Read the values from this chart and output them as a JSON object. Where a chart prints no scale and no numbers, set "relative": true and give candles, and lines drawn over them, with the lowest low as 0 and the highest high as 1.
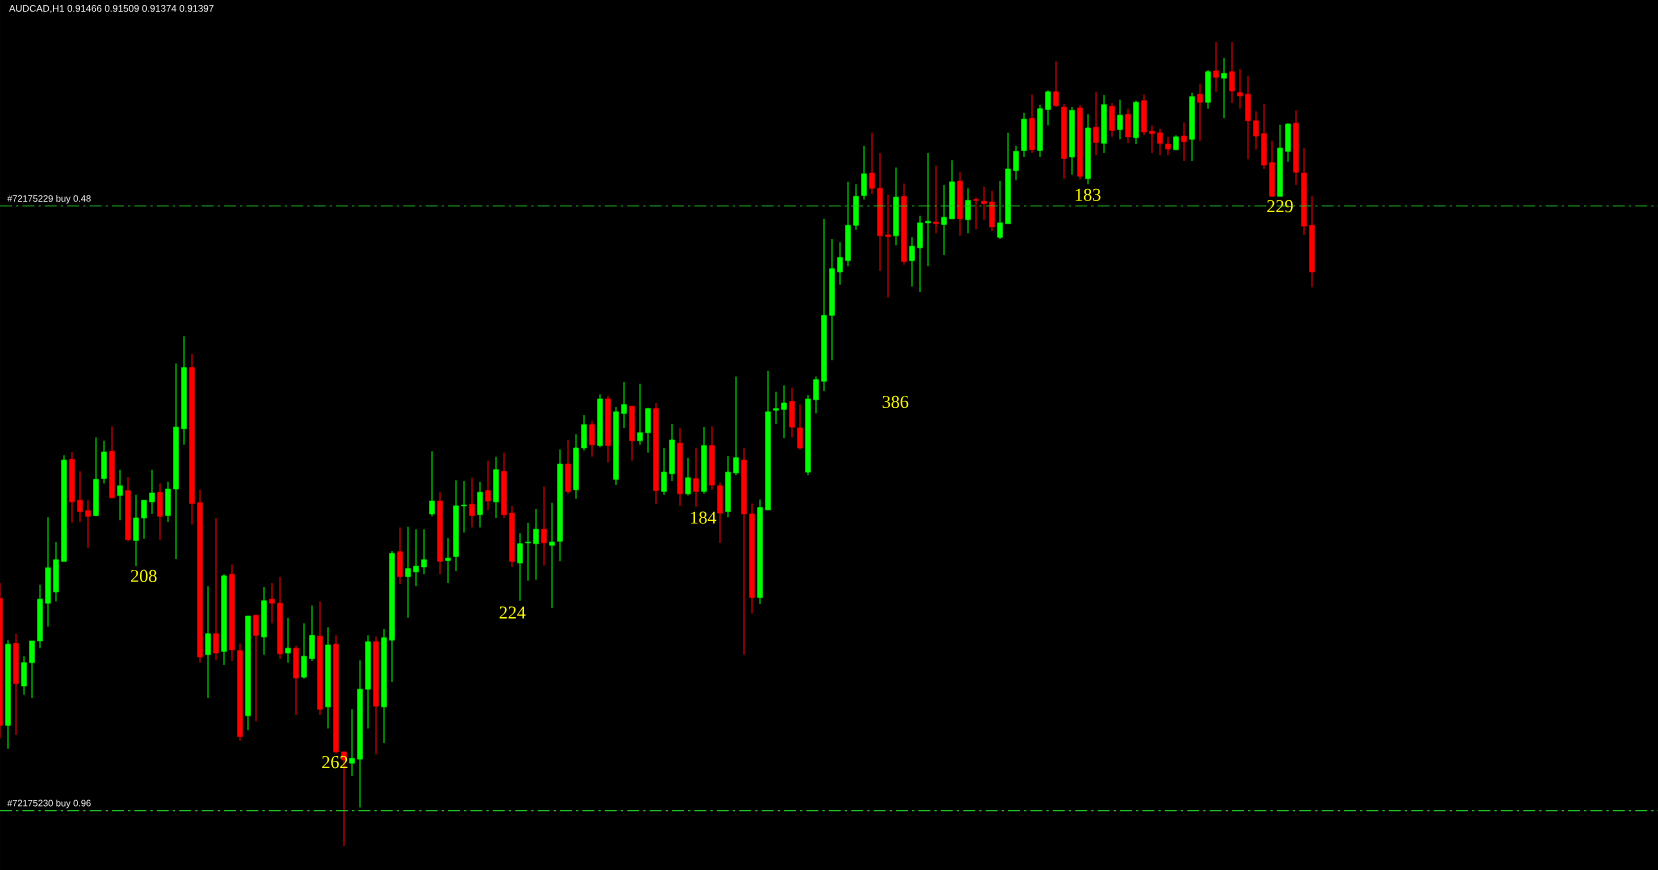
{
  "chart_data": {
    "type": "candlestick",
    "title": "AUDCAD,H1 0.91466 0.91509 0.91374 0.91397",
    "relative": true,
    "categories": [
      null,
      null,
      null,
      null,
      null,
      null,
      null,
      null,
      null,
      null,
      null,
      null,
      null,
      null,
      null,
      null,
      null,
      null,
      null,
      null,
      null,
      null,
      null,
      null,
      null,
      null,
      null,
      null,
      null,
      null,
      null,
      null,
      null,
      null,
      null,
      null,
      null,
      null,
      null,
      null,
      null,
      null,
      null,
      null,
      null,
      null,
      null,
      null,
      null,
      null,
      null,
      null,
      null,
      null,
      null,
      null,
      null,
      null,
      null,
      null,
      null,
      null,
      null,
      null,
      null,
      null,
      null,
      null,
      null,
      null,
      null,
      null,
      null,
      null,
      null,
      null,
      null,
      null,
      null,
      null,
      null,
      null,
      null,
      null,
      null,
      null,
      null,
      null,
      null,
      null,
      null,
      null,
      null,
      null,
      null,
      null,
      null,
      null,
      null,
      null,
      null,
      null,
      null,
      null,
      null,
      null,
      null,
      null,
      null,
      null,
      null,
      null,
      null,
      null,
      null,
      null,
      null,
      null,
      null,
      null,
      null,
      null,
      null,
      null,
      null,
      null,
      null,
      null,
      null,
      null,
      null,
      null,
      null,
      null,
      null,
      null,
      null,
      null,
      null,
      null,
      null,
      null,
      null,
      null,
      null,
      null,
      null,
      null,
      null,
      null,
      null,
      null,
      null,
      null,
      null,
      null,
      null,
      null,
      null,
      null,
      null,
      null,
      null,
      null,
      null
    ],
    "ohlc": [
      [
        0.308,
        0.327,
        0.134,
        0.15
      ],
      [
        0.15,
        0.256,
        0.121,
        0.251
      ],
      [
        0.252,
        0.264,
        0.138,
        0.202
      ],
      [
        0.199,
        0.236,
        0.188,
        0.228
      ],
      [
        0.228,
        0.255,
        0.184,
        0.255
      ],
      [
        0.255,
        0.325,
        0.246,
        0.307
      ],
      [
        0.302,
        0.409,
        0.273,
        0.346
      ],
      [
        0.316,
        0.378,
        0.304,
        0.356
      ],
      [
        0.354,
        0.486,
        0.354,
        0.48
      ],
      [
        0.481,
        0.49,
        0.402,
        0.428
      ],
      [
        0.43,
        0.466,
        0.403,
        0.416
      ],
      [
        0.417,
        0.43,
        0.371,
        0.41
      ],
      [
        0.411,
        0.508,
        0.41,
        0.456
      ],
      [
        0.457,
        0.504,
        0.451,
        0.49
      ],
      [
        0.491,
        0.522,
        0.433,
        0.433
      ],
      [
        0.436,
        0.468,
        0.405,
        0.448
      ],
      [
        0.442,
        0.459,
        0.379,
        0.381
      ],
      [
        0.38,
        0.437,
        0.348,
        0.408
      ],
      [
        0.408,
        0.43,
        0.382,
        0.43
      ],
      [
        0.428,
        0.468,
        0.413,
        0.439
      ],
      [
        0.44,
        0.451,
        0.381,
        0.41
      ],
      [
        0.411,
        0.453,
        0.403,
        0.444
      ],
      [
        0.444,
        0.6,
        0.357,
        0.521
      ],
      [
        0.519,
        0.634,
        0.499,
        0.595
      ],
      [
        0.595,
        0.612,
        0.4,
        0.426
      ],
      [
        0.427,
        0.443,
        0.228,
        0.235
      ],
      [
        0.238,
        0.323,
        0.184,
        0.264
      ],
      [
        0.264,
        0.408,
        0.231,
        0.24
      ],
      [
        0.242,
        0.338,
        0.225,
        0.336
      ],
      [
        0.338,
        0.35,
        0.23,
        0.244
      ],
      [
        0.243,
        0.252,
        0.131,
        0.136
      ],
      [
        0.162,
        0.286,
        0.144,
        0.286
      ],
      [
        0.287,
        0.287,
        0.155,
        0.262
      ],
      [
        0.26,
        0.322,
        0.238,
        0.305
      ],
      [
        0.307,
        0.327,
        0.277,
        0.302
      ],
      [
        0.302,
        0.335,
        0.233,
        0.239
      ],
      [
        0.24,
        0.284,
        0.228,
        0.246
      ],
      [
        0.246,
        0.249,
        0.163,
        0.209
      ],
      [
        0.21,
        0.277,
        0.208,
        0.236
      ],
      [
        0.233,
        0.299,
        0.23,
        0.262
      ],
      [
        0.261,
        0.304,
        0.163,
        0.17
      ],
      [
        0.173,
        0.272,
        0.146,
        0.25
      ],
      [
        0.251,
        0.262,
        0.115,
        0.117
      ],
      [
        0.117,
        0.117,
        0.0,
        0.107
      ],
      [
        0.103,
        0.17,
        0.087,
        0.109
      ],
      [
        0.108,
        0.231,
        0.048,
        0.195
      ],
      [
        0.195,
        0.262,
        0.146,
        0.254
      ],
      [
        0.254,
        0.261,
        0.114,
        0.174
      ],
      [
        0.173,
        0.27,
        0.128,
        0.259
      ],
      [
        0.256,
        0.367,
        0.204,
        0.364
      ],
      [
        0.366,
        0.396,
        0.326,
        0.335
      ],
      [
        0.335,
        0.397,
        0.284,
        0.345
      ],
      [
        0.341,
        0.394,
        0.323,
        0.348
      ],
      [
        0.347,
        0.394,
        0.338,
        0.356
      ],
      [
        0.413,
        0.491,
        0.41,
        0.429
      ],
      [
        0.429,
        0.44,
        0.338,
        0.354
      ],
      [
        0.355,
        0.383,
        0.327,
        0.358
      ],
      [
        0.36,
        0.455,
        0.342,
        0.423
      ],
      [
        0.423,
        0.454,
        0.39,
        0.424
      ],
      [
        0.425,
        0.458,
        0.396,
        0.411
      ],
      [
        0.412,
        0.453,
        0.396,
        0.44
      ],
      [
        0.442,
        0.479,
        0.418,
        0.429
      ],
      [
        0.428,
        0.484,
        0.408,
        0.468
      ],
      [
        0.466,
        0.489,
        0.408,
        0.412
      ],
      [
        0.414,
        0.423,
        0.347,
        0.354
      ],
      [
        0.352,
        0.389,
        0.305,
        0.376
      ],
      [
        0.377,
        0.402,
        0.33,
        0.378
      ],
      [
        0.376,
        0.419,
        0.331,
        0.394
      ],
      [
        0.394,
        0.447,
        0.349,
        0.377
      ],
      [
        0.374,
        0.427,
        0.296,
        0.378
      ],
      [
        0.379,
        0.493,
        0.354,
        0.475
      ],
      [
        0.475,
        0.505,
        0.438,
        0.441
      ],
      [
        0.443,
        0.512,
        0.432,
        0.495
      ],
      [
        0.495,
        0.536,
        0.492,
        0.524
      ],
      [
        0.524,
        0.529,
        0.484,
        0.499
      ],
      [
        0.498,
        0.562,
        0.496,
        0.556
      ],
      [
        0.556,
        0.56,
        0.477,
        0.498
      ],
      [
        0.456,
        0.546,
        0.449,
        0.54
      ],
      [
        0.538,
        0.577,
        0.52,
        0.549
      ],
      [
        0.547,
        0.547,
        0.479,
        0.504
      ],
      [
        0.504,
        0.575,
        0.499,
        0.514
      ],
      [
        0.514,
        0.545,
        0.489,
        0.544
      ],
      [
        0.544,
        0.551,
        0.425,
        0.442
      ],
      [
        0.441,
        0.495,
        0.437,
        0.465
      ],
      [
        0.463,
        0.525,
        0.454,
        0.505
      ],
      [
        0.501,
        0.52,
        0.423,
        0.438
      ],
      [
        0.438,
        0.483,
        0.436,
        0.458
      ],
      [
        0.457,
        0.495,
        0.422,
        0.441
      ],
      [
        0.441,
        0.521,
        0.438,
        0.498
      ],
      [
        0.498,
        0.522,
        0.443,
        0.449
      ],
      [
        0.448,
        0.452,
        0.377,
        0.414
      ],
      [
        0.416,
        0.485,
        0.409,
        0.465
      ],
      [
        0.464,
        0.584,
        0.461,
        0.483
      ],
      [
        0.48,
        0.495,
        0.238,
        0.413
      ],
      [
        0.413,
        0.426,
        0.289,
        0.309
      ],
      [
        0.309,
        0.431,
        0.301,
        0.421
      ],
      [
        0.418,
        0.591,
        0.418,
        0.54
      ],
      [
        0.542,
        0.565,
        0.525,
        0.544
      ],
      [
        0.543,
        0.573,
        0.507,
        0.551
      ],
      [
        0.553,
        0.57,
        0.508,
        0.521
      ],
      [
        0.52,
        0.549,
        0.493,
        0.495
      ],
      [
        0.465,
        0.561,
        0.461,
        0.556
      ],
      [
        0.555,
        0.584,
        0.538,
        0.58
      ],
      [
        0.578,
        0.78,
        0.566,
        0.66
      ],
      [
        0.66,
        0.755,
        0.604,
        0.718
      ],
      [
        0.714,
        0.751,
        0.698,
        0.732
      ],
      [
        0.728,
        0.826,
        0.721,
        0.772
      ],
      [
        0.772,
        0.823,
        0.766,
        0.808
      ],
      [
        0.809,
        0.871,
        0.804,
        0.836
      ],
      [
        0.837,
        0.887,
        0.811,
        0.818
      ],
      [
        0.818,
        0.862,
        0.715,
        0.759
      ],
      [
        0.76,
        0.81,
        0.682,
        0.758
      ],
      [
        0.759,
        0.844,
        0.747,
        0.807
      ],
      [
        0.808,
        0.824,
        0.723,
        0.727
      ],
      [
        0.728,
        0.757,
        0.696,
        0.746
      ],
      [
        0.744,
        0.784,
        0.689,
        0.775
      ],
      [
        0.775,
        0.862,
        0.721,
        0.777
      ],
      [
        0.776,
        0.846,
        0.762,
        0.774
      ],
      [
        0.773,
        0.822,
        0.735,
        0.782
      ],
      [
        0.78,
        0.853,
        0.78,
        0.826
      ],
      [
        0.827,
        0.838,
        0.759,
        0.78
      ],
      [
        0.779,
        0.818,
        0.762,
        0.803
      ],
      [
        0.804,
        0.807,
        0.767,
        0.803
      ],
      [
        0.802,
        0.82,
        0.779,
        0.799
      ],
      [
        0.801,
        0.815,
        0.765,
        0.77
      ],
      [
        0.757,
        0.827,
        0.755,
        0.775
      ],
      [
        0.774,
        0.887,
        0.774,
        0.842
      ],
      [
        0.84,
        0.871,
        0.828,
        0.864
      ],
      [
        0.865,
        0.912,
        0.857,
        0.904
      ],
      [
        0.905,
        0.935,
        0.862,
        0.866
      ],
      [
        0.865,
        0.922,
        0.857,
        0.917
      ],
      [
        0.916,
        0.94,
        0.896,
        0.938
      ],
      [
        0.938,
        0.976,
        0.919,
        0.921
      ],
      [
        0.919,
        0.923,
        0.83,
        0.855
      ],
      [
        0.857,
        0.919,
        0.835,
        0.915
      ],
      [
        0.918,
        0.922,
        0.829,
        0.833
      ],
      [
        0.83,
        0.91,
        0.823,
        0.893
      ],
      [
        0.894,
        0.938,
        0.859,
        0.875
      ],
      [
        0.874,
        0.934,
        0.862,
        0.922
      ],
      [
        0.92,
        0.924,
        0.882,
        0.89
      ],
      [
        0.891,
        0.928,
        0.879,
        0.909
      ],
      [
        0.91,
        0.917,
        0.874,
        0.882
      ],
      [
        0.881,
        0.927,
        0.873,
        0.925
      ],
      [
        0.927,
        0.935,
        0.884,
        0.888
      ],
      [
        0.889,
        0.896,
        0.862,
        0.886
      ],
      [
        0.887,
        0.892,
        0.859,
        0.874
      ],
      [
        0.873,
        0.882,
        0.859,
        0.867
      ],
      [
        0.866,
        0.884,
        0.866,
        0.882
      ],
      [
        0.883,
        0.9,
        0.852,
        0.876
      ],
      [
        0.879,
        0.937,
        0.852,
        0.932
      ],
      [
        0.935,
        0.948,
        0.877,
        0.925
      ],
      [
        0.925,
        0.965,
        0.917,
        0.963
      ],
      [
        0.964,
        1,
        0.938,
        0.956
      ],
      [
        0.955,
        0.98,
        0.905,
        0.961
      ],
      [
        0.963,
        1,
        0.924,
        0.939
      ],
      [
        0.937,
        0.966,
        0.917,
        0.933
      ],
      [
        0.935,
        0.958,
        0.854,
        0.902
      ],
      [
        0.902,
        0.914,
        0.866,
        0.883
      ],
      [
        0.886,
        0.923,
        0.842,
        0.847
      ],
      [
        0.85,
        0.877,
        0.808,
        0.808
      ],
      [
        0.808,
        0.897,
        0.808,
        0.868
      ],
      [
        0.864,
        0.899,
        0.851,
        0.898
      ],
      [
        0.899,
        0.915,
        0.822,
        0.838
      ],
      [
        0.837,
        0.868,
        0.76,
        0.771
      ],
      [
        0.772,
        0.808,
        0.695,
        0.714
      ]
    ],
    "colors": [
      "#ff0000",
      "#00ff00",
      "#ff0000",
      "#00ff00",
      "#00ff00",
      "#00ff00",
      "#00ff00",
      "#00ff00",
      "#00ff00",
      "#ff0000",
      "#ff0000",
      "#ff0000",
      "#00ff00",
      "#00ff00",
      "#ff0000",
      "#00ff00",
      "#ff0000",
      "#00ff00",
      "#00ff00",
      "#00ff00",
      "#ff0000",
      "#00ff00",
      "#00ff00",
      "#00ff00",
      "#ff0000",
      "#ff0000",
      "#00ff00",
      "#ff0000",
      "#00ff00",
      "#ff0000",
      "#ff0000",
      "#00ff00",
      "#ff0000",
      "#00ff00",
      "#ff0000",
      "#ff0000",
      "#00ff00",
      "#ff0000",
      "#00ff00",
      "#00ff00",
      "#ff0000",
      "#00ff00",
      "#ff0000",
      "#ff0000",
      "#00ff00",
      "#00ff00",
      "#00ff00",
      "#ff0000",
      "#00ff00",
      "#00ff00",
      "#ff0000",
      "#00ff00",
      "#00ff00",
      "#00ff00",
      "#00ff00",
      "#ff0000",
      "#00ff00",
      "#00ff00",
      "#00ff00",
      "#ff0000",
      "#00ff00",
      "#ff0000",
      "#00ff00",
      "#ff0000",
      "#ff0000",
      "#00ff00",
      "#00ff00",
      "#00ff00",
      "#ff0000",
      "#00ff00",
      "#00ff00",
      "#ff0000",
      "#00ff00",
      "#00ff00",
      "#ff0000",
      "#00ff00",
      "#ff0000",
      "#00ff00",
      "#00ff00",
      "#ff0000",
      "#00ff00",
      "#00ff00",
      "#ff0000",
      "#00ff00",
      "#00ff00",
      "#ff0000",
      "#00ff00",
      "#ff0000",
      "#00ff00",
      "#ff0000",
      "#ff0000",
      "#00ff00",
      "#00ff00",
      "#ff0000",
      "#ff0000",
      "#00ff00",
      "#00ff00",
      "#00ff00",
      "#00ff00",
      "#ff0000",
      "#ff0000",
      "#00ff00",
      "#00ff00",
      "#00ff00",
      "#00ff00",
      "#00ff00",
      "#00ff00",
      "#00ff00",
      "#00ff00",
      "#ff0000",
      "#ff0000",
      "#ff0000",
      "#00ff00",
      "#ff0000",
      "#00ff00",
      "#00ff00",
      "#00ff00",
      "#ff0000",
      "#00ff00",
      "#00ff00",
      "#ff0000",
      "#00ff00",
      "#ff0000",
      "#ff0000",
      "#ff0000",
      "#00ff00",
      "#00ff00",
      "#00ff00",
      "#00ff00",
      "#ff0000",
      "#00ff00",
      "#00ff00",
      "#ff0000",
      "#ff0000",
      "#00ff00",
      "#ff0000",
      "#00ff00",
      "#ff0000",
      "#00ff00",
      "#ff0000",
      "#00ff00",
      "#ff0000",
      "#00ff00",
      "#ff0000",
      "#ff0000",
      "#ff0000",
      "#ff0000",
      "#00ff00",
      "#ff0000",
      "#00ff00",
      "#ff0000",
      "#00ff00",
      "#ff0000",
      "#00ff00",
      "#ff0000",
      "#ff0000",
      "#ff0000",
      "#ff0000",
      "#ff0000",
      "#ff0000",
      "#00ff00",
      "#00ff00",
      "#ff0000",
      "#ff0000",
      "#ff0000"
    ],
    "ref_lines": [
      {
        "axis": "y",
        "value": 0.796,
        "label": "#72175229 buy 0.48",
        "color": "#22c022",
        "line_style": "dashed"
      },
      {
        "axis": "y",
        "value": 0.044,
        "label": "#72175230 buy 0.96",
        "color": "#22c022",
        "line_style": "dashed"
      }
    ],
    "annotations": [
      "208",
      "262",
      "224",
      "184",
      "386",
      "183",
      "229"
    ]
  }
}
